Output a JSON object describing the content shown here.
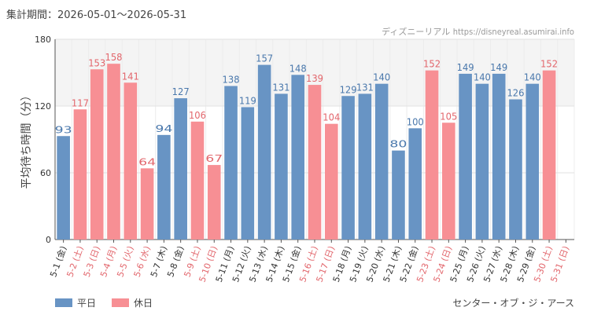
{
  "period_label": "集計期間：2026-05-01〜2026-05-31",
  "credit": {
    "site": "ディズニーリアル",
    "url": "https://disneyreal.asumirai.info"
  },
  "attraction": "センター・オブ・ジ・アース",
  "colors": {
    "weekday": "#6894c4",
    "holiday": "#f78f94",
    "holiday_text": "#e2666c",
    "weekday_text": "#4a78ac"
  },
  "legend": [
    {
      "label": "平日",
      "kind": "weekday"
    },
    {
      "label": "休日",
      "kind": "holiday"
    }
  ],
  "chart_data": {
    "type": "bar",
    "title": "",
    "xlabel": "",
    "ylabel": "平均待ち時間（分）",
    "ylim": [
      0,
      180
    ],
    "yticks": [
      0,
      60,
      120,
      180
    ],
    "categories": [
      "5-1 (金)",
      "5-2 (土)",
      "5-3 (日)",
      "5-4 (月)",
      "5-5 (火)",
      "5-6 (水)",
      "5-7 (木)",
      "5-8 (金)",
      "5-9 (土)",
      "5-10 (日)",
      "5-11 (月)",
      "5-12 (火)",
      "5-13 (水)",
      "5-14 (木)",
      "5-15 (金)",
      "5-16 (土)",
      "5-17 (日)",
      "5-18 (月)",
      "5-19 (火)",
      "5-20 (水)",
      "5-21 (木)",
      "5-22 (金)",
      "5-23 (土)",
      "5-24 (日)",
      "5-25 (月)",
      "5-26 (火)",
      "5-27 (水)",
      "5-28 (木)",
      "5-29 (金)",
      "5-30 (土)",
      "5-31 (日)"
    ],
    "values": [
      93,
      117,
      153,
      158,
      141,
      64,
      94,
      127,
      106,
      67,
      138,
      119,
      157,
      131,
      148,
      139,
      104,
      129,
      131,
      140,
      80,
      100,
      152,
      105,
      149,
      140,
      149,
      126,
      140,
      152,
      null
    ],
    "day_type": [
      "weekday",
      "holiday",
      "holiday",
      "holiday",
      "holiday",
      "holiday",
      "weekday",
      "weekday",
      "holiday",
      "holiday",
      "weekday",
      "weekday",
      "weekday",
      "weekday",
      "weekday",
      "holiday",
      "holiday",
      "weekday",
      "weekday",
      "weekday",
      "weekday",
      "weekday",
      "holiday",
      "holiday",
      "weekday",
      "weekday",
      "weekday",
      "weekday",
      "weekday",
      "holiday",
      "holiday"
    ],
    "grid": true
  }
}
